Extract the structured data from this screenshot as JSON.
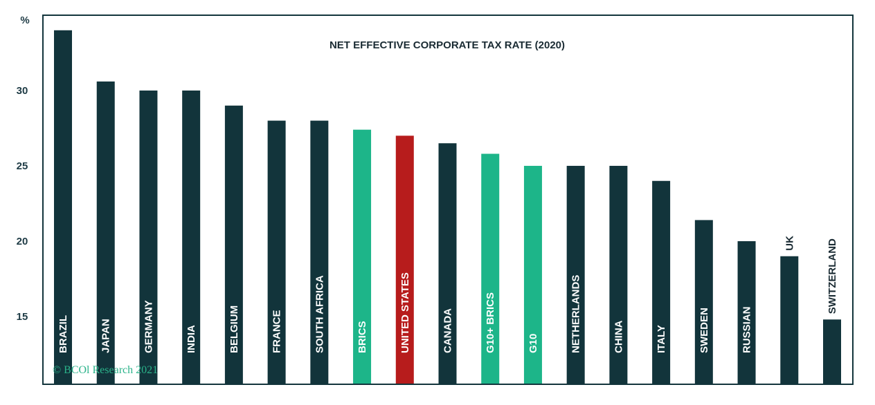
{
  "chart_data": {
    "type": "bar",
    "title": "NET EFFECTIVE CORPORATE TAX RATE (2020)",
    "ylabel": "%",
    "y_ticks": [
      "15",
      "20",
      "25",
      "30"
    ],
    "ylim": [
      10.5,
      35
    ],
    "grid": false,
    "categories": [
      "BRAZIL",
      "JAPAN",
      "GERMANY",
      "INDIA",
      "BELGIUM",
      "FRANCE",
      "SOUTH AFRICA",
      "BRICS",
      "UNITED STATES",
      "CANADA",
      "G10+ BRICS",
      "G10",
      "NETHERLANDS",
      "CHINA",
      "ITALY",
      "SWEDEN",
      "RUSSIAN",
      "UK",
      "SWITZERLAND"
    ],
    "values": [
      34.0,
      30.6,
      30.0,
      30.0,
      29.0,
      28.0,
      28.0,
      27.4,
      27.0,
      26.5,
      25.8,
      25.0,
      25.0,
      25.0,
      24.0,
      21.4,
      20.0,
      19.0,
      14.8
    ],
    "bar_colors": [
      "#12343b",
      "#12343b",
      "#12343b",
      "#12343b",
      "#12343b",
      "#12343b",
      "#12343b",
      "#1db589",
      "#b71c1c",
      "#12343b",
      "#1db589",
      "#1db589",
      "#12343b",
      "#12343b",
      "#12343b",
      "#12343b",
      "#12343b",
      "#12343b",
      "#12343b"
    ],
    "colors": {
      "default": "#12343b",
      "highlight_group": "#1db589",
      "highlight_us": "#b71c1c",
      "frame": "#12343b"
    },
    "credit": "© BCOl Research 2021"
  }
}
